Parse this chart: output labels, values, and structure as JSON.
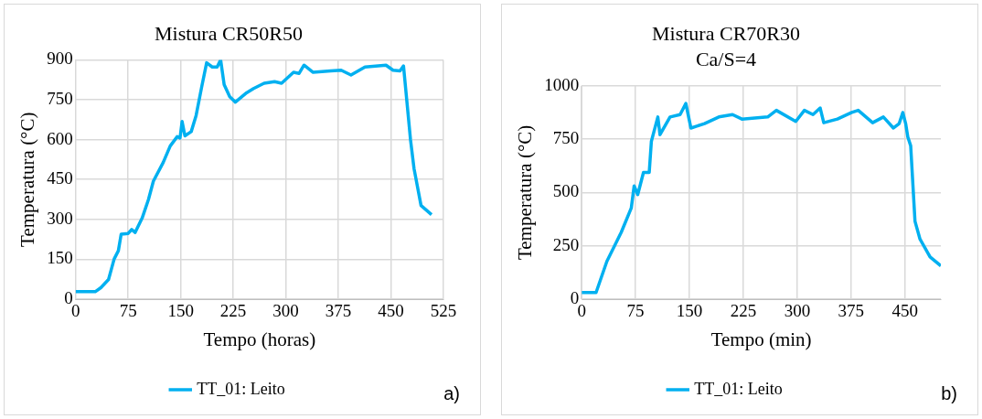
{
  "chart_data": [
    {
      "type": "line",
      "title": "Mistura CR50R50",
      "xlabel": "Tempo (horas)",
      "ylabel": "Temperatura (°C)",
      "annotations": [
        "a)"
      ],
      "xlim": [
        0,
        525
      ],
      "xticks": [
        0,
        75,
        150,
        225,
        300,
        375,
        450,
        525
      ],
      "ylim": [
        0,
        900
      ],
      "yticks": [
        0,
        150,
        300,
        450,
        600,
        750,
        900
      ],
      "grid": true,
      "legend": "bottom",
      "series": [
        {
          "name": "TT_01: Leito",
          "color": "#00b0f0",
          "x": [
            0,
            28,
            36,
            47,
            55,
            61,
            65,
            75,
            80,
            85,
            95,
            104,
            111,
            125,
            135,
            145,
            149,
            152,
            156,
            165,
            172,
            180,
            187,
            195,
            202,
            207,
            212,
            220,
            228,
            244,
            254,
            269,
            284,
            294,
            311,
            319,
            326,
            339,
            364,
            379,
            393,
            413,
            443,
            453,
            463,
            468,
            473,
            478,
            483,
            493,
            508
          ],
          "values": [
            28,
            28,
            43,
            74,
            151,
            182,
            244,
            247,
            262,
            251,
            305,
            375,
            444,
            514,
            576,
            611,
            606,
            668,
            614,
            630,
            691,
            799,
            889,
            873,
            873,
            900,
            807,
            761,
            741,
            776,
            792,
            812,
            818,
            812,
            853,
            849,
            880,
            853,
            858,
            861,
            843,
            873,
            880,
            861,
            858,
            877,
            738,
            599,
            491,
            352,
            318
          ]
        }
      ]
    },
    {
      "type": "line",
      "title": "Mistura CR70R30",
      "subtitle": "Ca/S=4",
      "xlabel": "Tempo (min)",
      "ylabel": "Temperatura (°C)",
      "annotations": [
        "b)"
      ],
      "xlim": [
        0,
        500
      ],
      "xticks": [
        0,
        75,
        150,
        225,
        300,
        375,
        450
      ],
      "ylim": [
        0,
        1000
      ],
      "yticks": [
        0,
        250,
        500,
        750,
        1000
      ],
      "grid": true,
      "legend": "bottom",
      "series": [
        {
          "name": "TT_01: Leito",
          "color": "#00b0f0",
          "x": [
            0,
            20,
            35,
            55,
            69,
            73,
            78,
            86,
            94,
            97,
            106,
            109,
            123,
            137,
            145,
            152,
            171,
            191,
            210,
            223,
            259,
            271,
            298,
            310,
            322,
            332,
            337,
            356,
            376,
            385,
            405,
            420,
            434,
            442,
            447,
            451,
            454,
            458,
            464,
            471,
            478,
            485,
            500
          ],
          "values": [
            31,
            31,
            177,
            313,
            427,
            531,
            490,
            594,
            594,
            740,
            854,
            771,
            854,
            865,
            917,
            802,
            823,
            854,
            865,
            844,
            854,
            885,
            833,
            885,
            865,
            896,
            827,
            844,
            875,
            885,
            827,
            854,
            802,
            823,
            875,
            823,
            760,
            719,
            365,
            281,
            240,
            198,
            156
          ]
        }
      ]
    }
  ]
}
